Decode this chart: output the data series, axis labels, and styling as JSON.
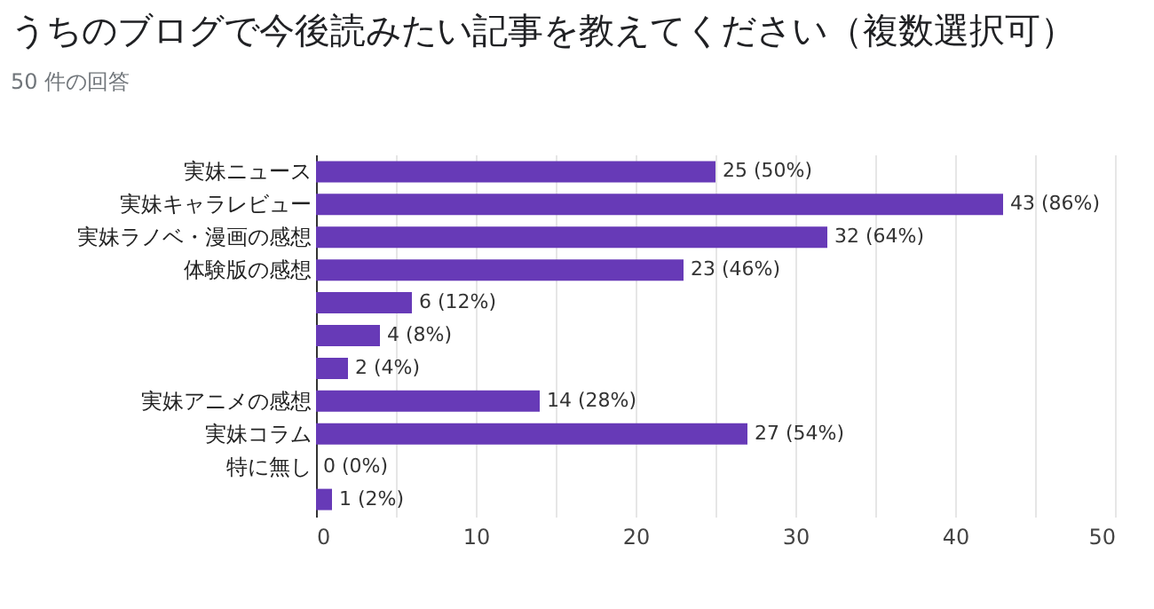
{
  "chart_data": {
    "type": "bar",
    "orientation": "horizontal",
    "title": "うちのブログで今後読みたい記事を教えてください（複数選択可）",
    "subtitle": "50 件の回答",
    "categories": [
      "実妹ニュース",
      "実妹キャラレビュー",
      "実妹ラノベ・漫画の感想",
      "体験版の感想",
      null,
      null,
      null,
      "実妹アニメの感想",
      "実妹コラム",
      "特に無し",
      null
    ],
    "values": [
      25,
      43,
      32,
      23,
      6,
      4,
      2,
      14,
      27,
      0,
      1
    ],
    "value_labels": [
      "25 (50%)",
      "43 (86%)",
      "32 (64%)",
      "23 (46%)",
      "6 (12%)",
      "4 (8%)",
      "2 (4%)",
      "14 (28%)",
      "27 (54%)",
      "0 (0%)",
      "1 (2%)"
    ],
    "color": "#673ab7",
    "xlim": [
      0,
      50
    ],
    "xticks": [
      0,
      {
        "value": 5,
        "label": null
      },
      10,
      {
        "value": 15,
        "label": null
      },
      20,
      {
        "value": 25,
        "label": null
      },
      30,
      {
        "value": 35,
        "label": null
      },
      40,
      {
        "value": 45,
        "label": null
      },
      50
    ],
    "grid": "x"
  }
}
